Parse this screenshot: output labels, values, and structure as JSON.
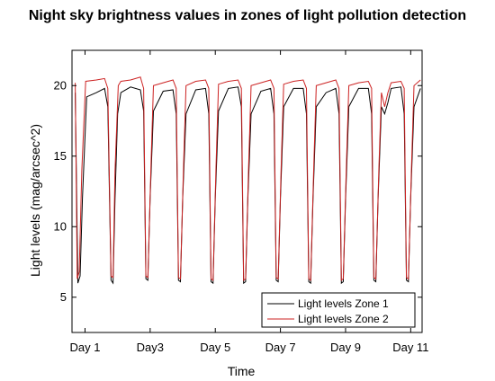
{
  "chart_data": {
    "type": "line",
    "title": "Night sky brightness values in zones of light pollution detection",
    "xlabel": "Time",
    "ylabel": "Light levels (mag/arcsec^2)",
    "xlim": [
      0.6,
      11.35
    ],
    "ylim": [
      2.5,
      22.5
    ],
    "yticks": [
      5,
      10,
      15,
      20
    ],
    "xticks": [
      {
        "value": 1,
        "label": "Day 1"
      },
      {
        "value": 3,
        "label": "Day3"
      },
      {
        "value": 5,
        "label": "Day 5"
      },
      {
        "value": 7,
        "label": "Day 7"
      },
      {
        "value": 9,
        "label": "Day 9"
      },
      {
        "value": 11,
        "label": "Day 11"
      }
    ],
    "grid": false,
    "legend_position": "bottom-right",
    "series": [
      {
        "name": "Light levels Zone 1",
        "color": "#000000",
        "x": [
          0.7,
          0.78,
          0.85,
          0.92,
          1.05,
          1.35,
          1.6,
          1.7,
          1.8,
          1.86,
          1.92,
          2.0,
          2.1,
          2.4,
          2.7,
          2.8,
          2.87,
          2.93,
          3.0,
          3.1,
          3.4,
          3.7,
          3.8,
          3.87,
          3.93,
          4.0,
          4.1,
          4.4,
          4.7,
          4.8,
          4.87,
          4.93,
          5.0,
          5.1,
          5.4,
          5.7,
          5.8,
          5.87,
          5.93,
          6.0,
          6.1,
          6.4,
          6.7,
          6.8,
          6.87,
          6.93,
          7.0,
          7.1,
          7.4,
          7.7,
          7.8,
          7.87,
          7.93,
          8.0,
          8.1,
          8.4,
          8.7,
          8.8,
          8.87,
          8.93,
          9.0,
          9.1,
          9.4,
          9.7,
          9.8,
          9.87,
          9.93,
          10.0,
          10.1,
          10.2,
          10.3,
          10.4,
          10.7,
          10.8,
          10.87,
          10.93,
          11.0,
          11.1,
          11.3
        ],
        "y": [
          19.5,
          6.0,
          6.5,
          12.0,
          19.2,
          19.5,
          19.8,
          18.5,
          6.2,
          6.0,
          12.0,
          18.0,
          19.5,
          19.9,
          19.7,
          18.2,
          6.3,
          6.2,
          12.0,
          18.2,
          19.6,
          19.7,
          18.0,
          6.2,
          6.1,
          12.0,
          18.0,
          19.7,
          19.8,
          18.0,
          6.1,
          6.0,
          12.0,
          18.2,
          19.8,
          19.9,
          18.5,
          6.0,
          6.1,
          12.0,
          18.0,
          19.6,
          19.8,
          18.0,
          6.2,
          6.1,
          12.0,
          18.5,
          19.8,
          19.8,
          18.0,
          6.1,
          6.0,
          12.0,
          18.5,
          19.5,
          19.8,
          18.0,
          6.0,
          6.1,
          12.0,
          18.5,
          19.8,
          19.8,
          18.0,
          6.2,
          6.1,
          12.0,
          18.5,
          18.0,
          18.8,
          19.8,
          19.9,
          18.0,
          6.2,
          6.1,
          12.0,
          18.5,
          19.8
        ]
      },
      {
        "name": "Light levels Zone 2",
        "color": "#cc2222",
        "x": [
          0.7,
          0.76,
          0.82,
          0.9,
          1.02,
          1.35,
          1.6,
          1.7,
          1.8,
          1.86,
          1.92,
          2.02,
          2.1,
          2.4,
          2.7,
          2.8,
          2.87,
          2.93,
          3.02,
          3.1,
          3.4,
          3.7,
          3.8,
          3.87,
          3.93,
          4.02,
          4.1,
          4.4,
          4.7,
          4.8,
          4.87,
          4.93,
          5.02,
          5.1,
          5.4,
          5.7,
          5.8,
          5.87,
          5.93,
          6.02,
          6.1,
          6.4,
          6.7,
          6.8,
          6.87,
          6.93,
          7.02,
          7.1,
          7.4,
          7.7,
          7.8,
          7.87,
          7.93,
          8.02,
          8.1,
          8.4,
          8.7,
          8.8,
          8.87,
          8.93,
          9.02,
          9.1,
          9.4,
          9.7,
          9.8,
          9.87,
          9.93,
          10.02,
          10.1,
          10.2,
          10.3,
          10.4,
          10.7,
          10.8,
          10.87,
          10.93,
          11.02,
          11.1,
          11.3
        ],
        "y": [
          20.2,
          6.3,
          6.8,
          14.0,
          20.3,
          20.4,
          20.5,
          19.8,
          6.5,
          6.4,
          14.0,
          20.0,
          20.3,
          20.4,
          20.6,
          19.8,
          6.5,
          6.4,
          14.0,
          20.0,
          20.2,
          20.4,
          19.8,
          6.4,
          6.3,
          14.0,
          20.0,
          20.3,
          20.4,
          19.8,
          6.3,
          6.2,
          14.0,
          20.1,
          20.3,
          20.4,
          19.8,
          6.2,
          6.3,
          14.0,
          20.0,
          20.2,
          20.4,
          19.8,
          6.4,
          6.3,
          14.0,
          20.1,
          20.3,
          20.4,
          19.8,
          6.3,
          6.2,
          14.0,
          20.0,
          20.2,
          20.4,
          19.8,
          6.2,
          6.3,
          14.0,
          20.0,
          20.2,
          20.3,
          19.8,
          6.4,
          6.3,
          14.0,
          19.5,
          18.5,
          19.5,
          20.2,
          20.3,
          19.8,
          6.4,
          6.3,
          14.0,
          20.0,
          20.4
        ]
      }
    ]
  }
}
